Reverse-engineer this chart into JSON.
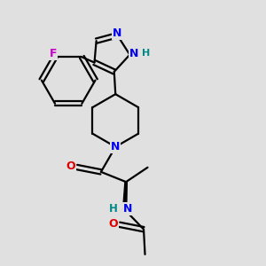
{
  "background_color": "#e0e0e0",
  "bond_color": "#000000",
  "bond_width": 1.6,
  "atom_colors": {
    "N": "#0000ee",
    "O": "#dd0000",
    "F": "#cc00cc",
    "H_label": "#008888",
    "C": "#000000"
  },
  "font_size_atom": 8.5,
  "figsize": [
    3.0,
    3.0
  ],
  "dpi": 100
}
